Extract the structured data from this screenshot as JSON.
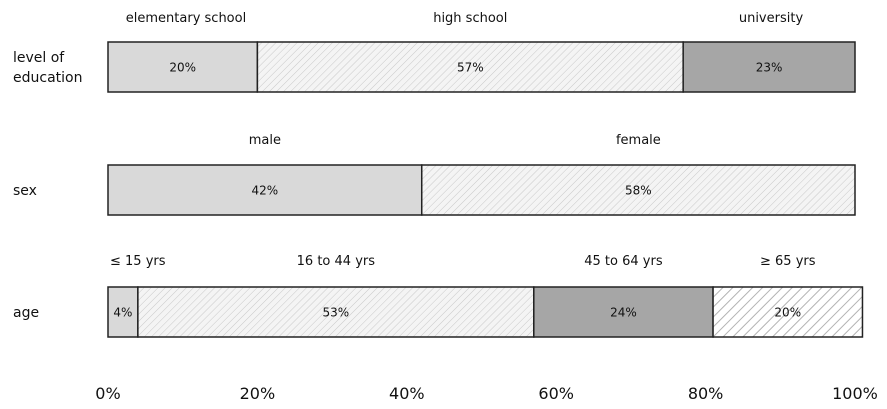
{
  "chart_data": {
    "type": "bar",
    "orientation": "horizontal",
    "stacked": true,
    "normalized": true,
    "title": "",
    "xlabel": "",
    "ylabel": "",
    "xlim": [
      0,
      100
    ],
    "x_ticks": [
      "0%",
      "20%",
      "40%",
      "60%",
      "80%",
      "100%"
    ],
    "grid": false,
    "legend": "none",
    "rows": [
      {
        "category_lines": [
          "level of",
          "education"
        ],
        "segments": [
          {
            "label": "elementary school",
            "value": 20,
            "value_label": "20%",
            "fill": "light-gray",
            "color": "#d9d9d9"
          },
          {
            "label": "high school",
            "value": 57,
            "value_label": "57%",
            "fill": "fine-hatch",
            "color": "#f2f2f2"
          },
          {
            "label": "university",
            "value": 23,
            "value_label": "23%",
            "fill": "dark-gray",
            "color": "#a6a6a6"
          }
        ]
      },
      {
        "category_lines": [
          "sex"
        ],
        "segments": [
          {
            "label": "male",
            "value": 42,
            "value_label": "42%",
            "fill": "light-gray",
            "color": "#d9d9d9"
          },
          {
            "label": "female",
            "value": 58,
            "value_label": "58%",
            "fill": "fine-hatch",
            "color": "#f2f2f2"
          }
        ]
      },
      {
        "category_lines": [
          "age"
        ],
        "segments": [
          {
            "label": "≤ 15 yrs",
            "value": 4,
            "value_label": "4%",
            "fill": "light-gray",
            "color": "#d9d9d9"
          },
          {
            "label": "16 to 44 yrs",
            "value": 53,
            "value_label": "53%",
            "fill": "fine-hatch",
            "color": "#f2f2f2"
          },
          {
            "label": "45 to 64 yrs",
            "value": 24,
            "value_label": "24%",
            "fill": "dark-gray",
            "color": "#a6a6a6"
          },
          {
            "label": "≥ 65 yrs",
            "value": 20,
            "value_label": "20%",
            "fill": "coarse-hatch",
            "color": "#ffffff"
          }
        ]
      }
    ]
  }
}
